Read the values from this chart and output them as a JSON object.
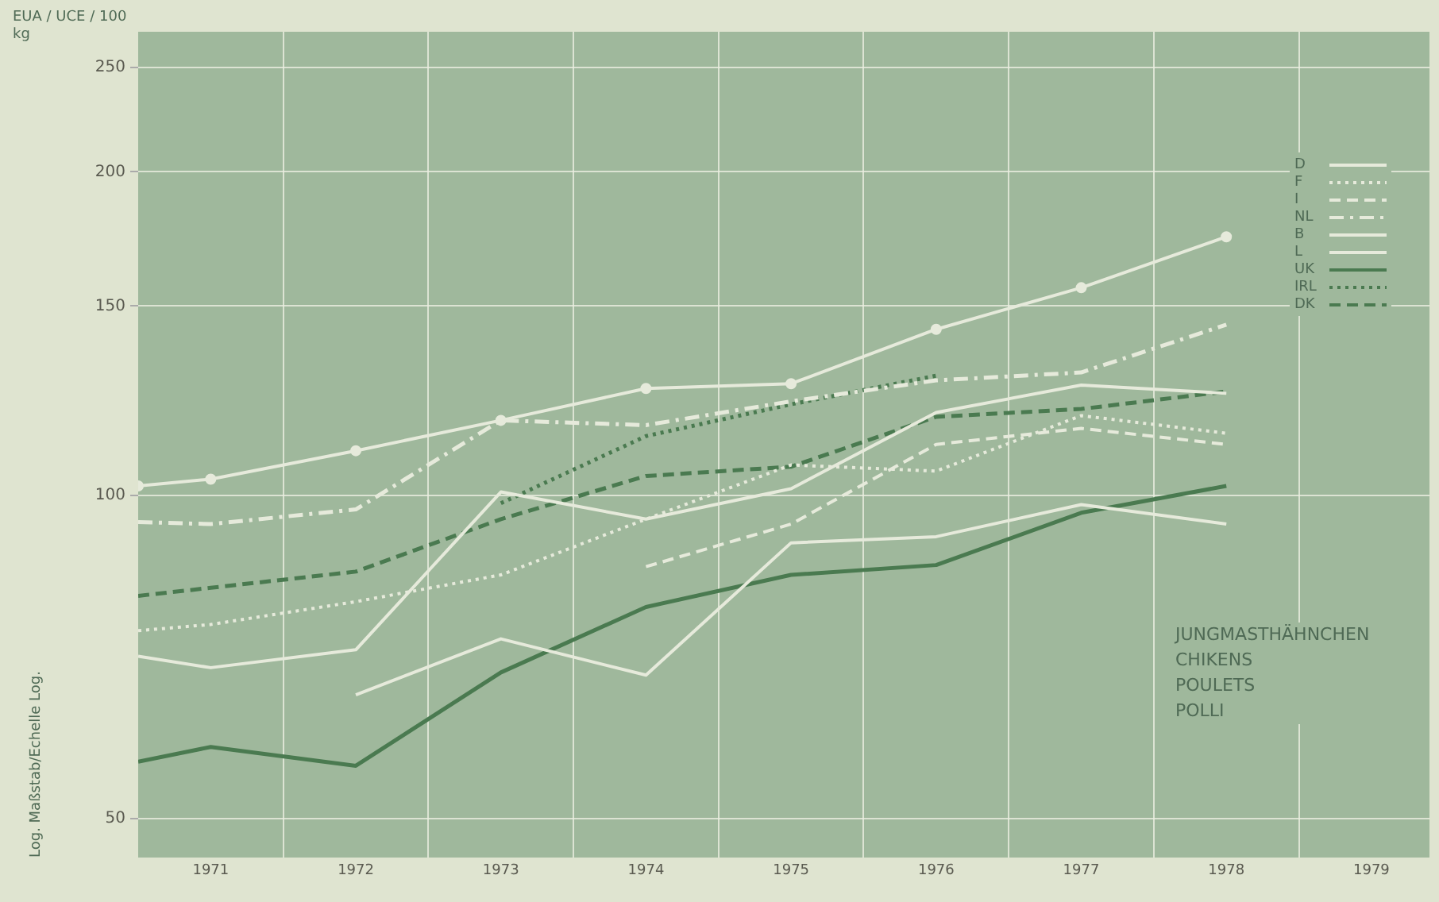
{
  "chart_data": {
    "type": "line",
    "ylabel": "Log. Maßstab/Echelle Log.",
    "annotations": [
      "EUA / UCE / 100 kg",
      "JUNGMASTHÄHNCHEN",
      "CHIKENS",
      "POULETS",
      "POLLI"
    ],
    "x": [
      1970.5,
      1971,
      1972,
      1973,
      1974,
      1975,
      1976,
      1977,
      1978
    ],
    "series": [
      {
        "name": "D",
        "color": "#e6eadb",
        "line_style": "solid",
        "values": [
          70.8,
          69.1,
          71.8,
          100.7,
          95.0,
          101.4,
          119.4,
          126.6,
          124.4
        ]
      },
      {
        "name": "F",
        "color": "#e6eadb",
        "line_style": "dotted",
        "values": [
          74.8,
          75.8,
          79.6,
          84.3,
          95.0,
          106.7,
          105.3,
          118.6,
          114.2
        ]
      },
      {
        "name": "I",
        "color": "#e6eadb",
        "line_style": "dashed",
        "values": [
          null,
          null,
          null,
          null,
          85.8,
          94.0,
          111.5,
          115.4,
          111.5
        ]
      },
      {
        "name": "NL",
        "color": "#e6eadb",
        "line_style": "dashdot",
        "values": [
          94.4,
          94.0,
          97.0,
          117.4,
          116.2,
          122.3,
          127.9,
          130.1,
          144.1
        ]
      },
      {
        "name": "B",
        "color": "#e6eadb",
        "line_style": "solid",
        "marker": "circle",
        "values": [
          102,
          103.5,
          110.0,
          117.4,
          125.7,
          127.0,
          142.7,
          156,
          174
        ]
      },
      {
        "name": "L",
        "color": "#e6eadb",
        "line_style": "solid",
        "values": [
          null,
          null,
          65.2,
          73.5,
          68.0,
          90.3,
          91.5,
          98.0,
          94.0
        ]
      },
      {
        "name": "UK",
        "color": "#4a7a50",
        "line_style": "solid",
        "values": [
          56.5,
          58.3,
          56.0,
          68.4,
          78.7,
          84.3,
          86.1,
          96.3,
          102
        ]
      },
      {
        "name": "IRL",
        "color": "#4a7a50",
        "line_style": "dotted",
        "values": [
          null,
          null,
          null,
          98.3,
          113.5,
          121.5,
          129.2,
          null,
          null
        ]
      },
      {
        "name": "DK",
        "color": "#4a7a50",
        "line_style": "dashed",
        "values": [
          80.6,
          82.0,
          84.9,
          95.0,
          104.2,
          106.3,
          118.3,
          120.3,
          124.9
        ]
      }
    ],
    "log": "y",
    "ylim": [
      46,
      270
    ],
    "yticks": [
      50,
      100,
      150,
      200,
      250
    ],
    "xlim": [
      1970.5,
      1979.4
    ],
    "xticks": [
      1971,
      {
        "value": 1971.5,
        "label": null
      },
      1972,
      {
        "value": 1972.5,
        "label": null
      },
      1973,
      {
        "value": 1973.5,
        "label": null
      },
      1974,
      {
        "value": 1974.5,
        "label": null
      },
      1975,
      {
        "value": 1975.5,
        "label": null
      },
      1976,
      {
        "value": 1976.5,
        "label": null
      },
      1977,
      {
        "value": 1977.5,
        "label": null
      },
      1978,
      {
        "value": 1978.5,
        "label": null
      },
      1979
    ],
    "grid": true,
    "legend": "top right",
    "marker": "none"
  }
}
